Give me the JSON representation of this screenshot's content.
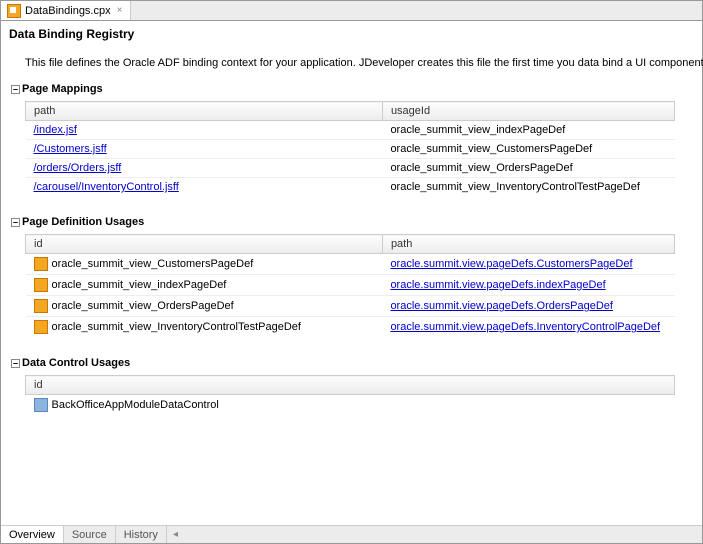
{
  "tab": {
    "file_name": "DataBindings.cpx",
    "close_glyph": "×"
  },
  "page": {
    "title": "Data Binding Registry",
    "description": "This file defines the Oracle ADF binding context for your application. JDeveloper creates this file the first time you data bind a UI component."
  },
  "sections": {
    "page_mappings": {
      "title": "Page Mappings",
      "columns": {
        "a": "path",
        "b": "usageId"
      },
      "rows": [
        {
          "path": "/index.jsf",
          "usageId": "oracle_summit_view_indexPageDef"
        },
        {
          "path": "/Customers.jsff",
          "usageId": "oracle_summit_view_CustomersPageDef"
        },
        {
          "path": "/orders/Orders.jsff",
          "usageId": "oracle_summit_view_OrdersPageDef"
        },
        {
          "path": "/carousel/InventoryControl.jsff",
          "usageId": "oracle_summit_view_InventoryControlTestPageDef"
        }
      ]
    },
    "page_def_usages": {
      "title": "Page Definition Usages",
      "columns": {
        "a": "id",
        "b": "path"
      },
      "rows": [
        {
          "id": "oracle_summit_view_CustomersPageDef",
          "path": "oracle.summit.view.pageDefs.CustomersPageDef"
        },
        {
          "id": "oracle_summit_view_indexPageDef",
          "path": "oracle.summit.view.pageDefs.indexPageDef"
        },
        {
          "id": "oracle_summit_view_OrdersPageDef",
          "path": "oracle.summit.view.pageDefs.OrdersPageDef"
        },
        {
          "id": "oracle_summit_view_InventoryControlTestPageDef",
          "path": "oracle.summit.view.pageDefs.InventoryControlPageDef"
        }
      ]
    },
    "data_control_usages": {
      "title": "Data Control Usages",
      "columns": {
        "a": "id"
      },
      "rows": [
        {
          "id": "BackOfficeAppModuleDataControl"
        }
      ]
    }
  },
  "bottom_tabs": {
    "overview": "Overview",
    "source": "Source",
    "history": "History"
  },
  "expander_glyph": "–",
  "colors": {
    "link": "#0000cc",
    "header_bg_top": "#fdfdfd",
    "header_bg_bottom": "#ececec",
    "border": "#cccccc",
    "icon_file_bg": "#f5a623",
    "icon_file_border": "#c47a00",
    "icon_dc_bg": "#8cb4e0",
    "icon_dc_border": "#5a88bb"
  }
}
